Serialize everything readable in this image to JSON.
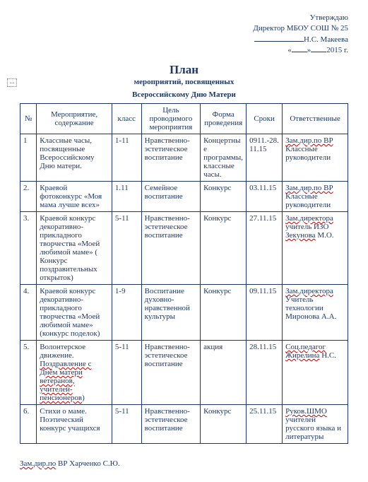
{
  "approve": {
    "l1": "Утверждаю",
    "l2": "Директор МБОУ СОШ № 25",
    "name": "Н.С. Макеева",
    "year": "2015 г."
  },
  "title": "План",
  "subtitle1": "мероприятий, посвященных",
  "subtitle2": "Всероссийскому Дню Матери",
  "headers": {
    "num": "№",
    "event": "Мероприятие, содержание",
    "klass": "класс",
    "goal": "Цель проводимого мероприятия",
    "form": "Форма проведения",
    "date": "Сроки",
    "resp": "Ответственные"
  },
  "rows": [
    {
      "num": "1",
      "event_plain": "Классные часы, посвященные Всероссийскому Дню матери.",
      "klass": "1-11",
      "goal": "Нравственно-эстетическое воспитание",
      "form": "Концертные программы, классные часы.",
      "date": "0911.-28.11.15",
      "resp_wave": "Зам.дир.по ВР",
      "resp_plain": "Классные руководители"
    },
    {
      "num": "2.",
      "event_plain": "Краевой фотоконкурс «Моя мама лучше всех»",
      "klass": "1.11",
      "goal": "Семейное воспитание",
      "form": "Конкурс",
      "date": "03.11.15",
      "resp_wave": "Зам.дир.по ВР",
      "resp_plain": "Классные руководители"
    },
    {
      "num": "3.",
      "event_plain": "Краевой конкурс декоративно-прикладного творчества «Моей любимой маме» ( Конкурс поздравительных открыток)",
      "klass": "5-11",
      "goal": "Нравственно-эстетическое воспитание",
      "form": "Конкурс",
      "date": "27.11.15",
      "resp_wave1": "Зам.директора",
      "resp_plain1": "учитель ИЗО",
      "resp_wave2": "Зекунова",
      "resp_plain2": " М.О."
    },
    {
      "num": "4.",
      "event_plain": "Краевой конкурс декоративно-прикладного творчества «Моей любимой маме» (конкурс поделок)",
      "klass": "1-9",
      "goal": "Воспитание духовно-нравственной культуры",
      "form": "Конкурс",
      "date": "09.11.15",
      "resp_wave": "Зам.директора",
      "resp_plain": " Учитель технологии Миронова А.А."
    },
    {
      "num": "5.",
      "event_lead": "Волонтерское движение.",
      "event_wave1": "Поздравление с Днём матери ветеранов, учителей-пенсионеров",
      "event_tail": ")",
      "klass": "5-11",
      "goal": "Нравственно-эстетическое воспитание",
      "form": "акция",
      "date": "28.11.15",
      "resp_wave1": "Соц.педагог",
      "resp_wave2": "Жирелина",
      "resp_plain": "Н.С."
    },
    {
      "num": "6.",
      "event_plain": "Стихи о маме. Поэтический конкурс учащихся",
      "klass": "5-11",
      "goal": "Нравственно-эстетическое воспитание",
      "form": "Конкурс",
      "date": "25.11.15",
      "resp_wave": "Руков.ШМО",
      "resp_plain": "учителей русского языка и литературы"
    }
  ],
  "footer": {
    "wave": "Зам.дир.по",
    "plain": " ВР  Харченко С.Ю."
  }
}
